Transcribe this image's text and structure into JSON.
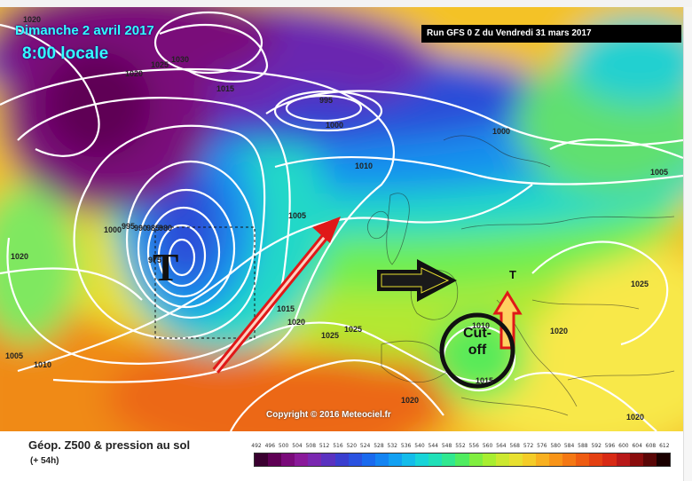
{
  "header": {
    "date_line": "Dimanche 2 avril 2017",
    "time_line": "8:00 locale",
    "run_info": "Run GFS 0 Z du Vendredi 31 mars 2017"
  },
  "copyright": "Copyright © 2016 Meteociel.fr",
  "annotations": {
    "low_symbol": "T",
    "small_low_symbol": "T",
    "cutoff_line1": "Cut-",
    "cutoff_line2": "off"
  },
  "isobar_labels": {
    "l1020_tl": "1020",
    "l1020_a": "1020",
    "l1025_a": "1025",
    "l1030": "1030",
    "l1015_a": "1015",
    "l995": "995",
    "l1000_a": "1000",
    "l1000_b": "1000",
    "l1010_a": "1010",
    "l1005_a": "1005",
    "l1005_b": "1005",
    "l1000_c": "1000",
    "l995_b": "995",
    "l990": "990",
    "l985": "985",
    "l980": "980",
    "l975": "975",
    "l1020_w": "1020",
    "l1015_b": "1015",
    "l1020_b": "1020",
    "l1025_b": "1025",
    "l1025_c": "1025",
    "l1005_w": "1005",
    "l1010_w": "1010",
    "l1010_b": "1010",
    "l1025_e": "1025",
    "l1020_c": "1020",
    "l1020_d": "1020",
    "l1020_e": "1020",
    "l1015_c": "1015"
  },
  "legend": {
    "title": "Géop. Z500 & pression au sol",
    "subtitle": "(+ 54h)",
    "ticks": [
      "492",
      "496",
      "500",
      "504",
      "508",
      "512",
      "516",
      "520",
      "524",
      "528",
      "532",
      "536",
      "540",
      "544",
      "548",
      "552",
      "556",
      "560",
      "564",
      "568",
      "572",
      "576",
      "580",
      "584",
      "588",
      "592",
      "596",
      "600",
      "604",
      "608",
      "612"
    ],
    "colors": [
      "#3a0030",
      "#5e0054",
      "#7a0a7a",
      "#8a1a9a",
      "#7a28b0",
      "#5a32c0",
      "#3a3ecf",
      "#2a52e0",
      "#1a6aee",
      "#1484f2",
      "#12a0f2",
      "#14bcea",
      "#18d4d8",
      "#20e0b8",
      "#30e890",
      "#50ec60",
      "#80ee40",
      "#a8ee30",
      "#cce830",
      "#e8e030",
      "#f4cc28",
      "#f8b020",
      "#f89418",
      "#f47814",
      "#ee5c12",
      "#e44012",
      "#d82a14",
      "#b81818",
      "#8a0c0c",
      "#5a0606",
      "#1a0000"
    ]
  },
  "overlay_colors": {
    "arrow_red": "#e01818",
    "arrow_black": "#111111",
    "circle_black": "#111111",
    "isobar": "#ffffff"
  }
}
